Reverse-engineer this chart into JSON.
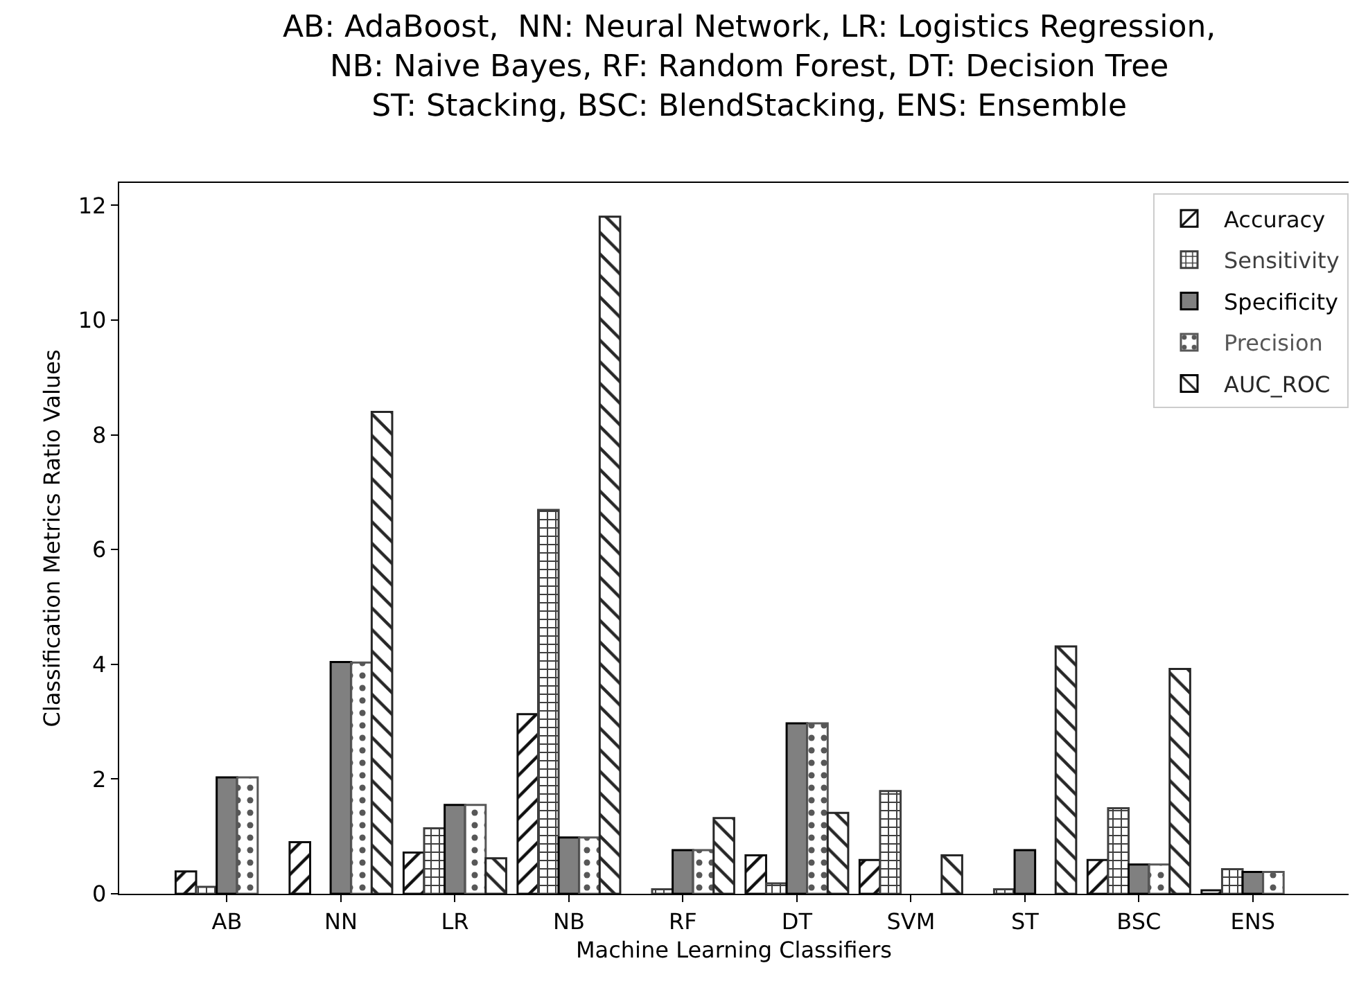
{
  "chart_data": {
    "type": "bar",
    "title": "AB: AdaBoost,  NN: Neural Network, LR: Logistics Regression,\nNB: Naive Bayes, RF: Random Forest, DT: Decision Tree\nST: Stacking, BSC: BlendStacking, ENS: Ensemble",
    "xlabel": "Machine Learning Classifiers",
    "ylabel": "Classification Metrics Ratio Values",
    "categories": [
      "AB",
      "NN",
      "LR",
      "NB",
      "RF",
      "DT",
      "SVM",
      "ST",
      "BSC",
      "ENS"
    ],
    "series": [
      {
        "name": "Accuracy",
        "color": "#0f0f0f",
        "values": [
          0.39,
          0.9,
          0.72,
          3.13,
          0,
          0.67,
          0.59,
          0,
          0.59,
          0.06
        ]
      },
      {
        "name": "Sensitivity",
        "color": "#3f3f3f",
        "values": [
          0.12,
          0,
          1.14,
          6.69,
          0.08,
          0.18,
          1.79,
          0.08,
          1.49,
          0.43
        ]
      },
      {
        "name": "Specificity",
        "color": "#808080",
        "values": [
          2.03,
          4.04,
          1.55,
          0.98,
          0.76,
          2.97,
          0,
          0.76,
          0.51,
          0.38
        ]
      },
      {
        "name": "Precision",
        "color": "#575757",
        "values": [
          2.03,
          4.03,
          1.55,
          0.98,
          0.76,
          2.97,
          0,
          0,
          0.51,
          0.38
        ]
      },
      {
        "name": "AUC_ROC",
        "color": "#272727",
        "values": [
          0,
          8.4,
          0.62,
          11.8,
          1.32,
          1.41,
          0.67,
          4.31,
          3.92,
          0
        ]
      }
    ],
    "ylim": [
      0,
      12.39
    ],
    "yticks": [
      0,
      2,
      4,
      6,
      8,
      10,
      12
    ],
    "grid": false,
    "legend": "top right"
  }
}
